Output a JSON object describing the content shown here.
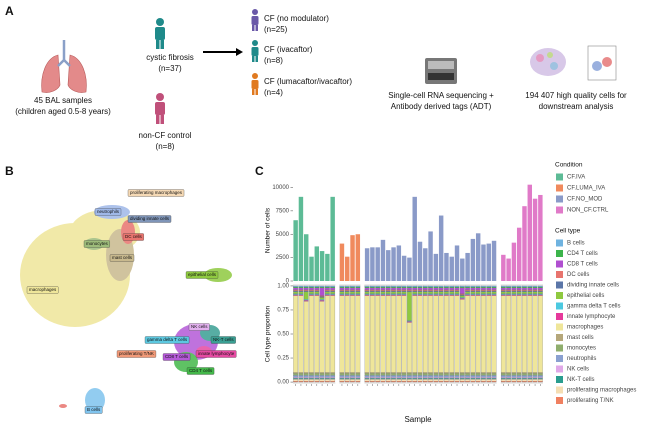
{
  "panel_a": {
    "label": "A",
    "samples": [
      "45 BAL samples",
      "(children aged 0.5-8 years)"
    ],
    "cf": [
      "cystic fibrosis",
      "(n=37)"
    ],
    "control": [
      "non-CF control",
      "(n=8)"
    ],
    "subgroups": [
      [
        "CF (no modulator)",
        "(n=25)"
      ],
      [
        "CF (ivacaftor)",
        "(n=8)"
      ],
      [
        "CF (lumacaftor/ivacaftor)",
        "(n=4)"
      ]
    ],
    "sequencing": [
      "Single-cell RNA sequencing +",
      "Antibody derived tags (ADT)"
    ],
    "cells": [
      "194 407 high quality cells for",
      "downstream analysis"
    ]
  },
  "panel_b": {
    "label": "B",
    "clusters": [
      {
        "name": "proliferating macrophages",
        "color": "#f5d9b5"
      },
      {
        "name": "neutrophils",
        "color": "#9fb8e8"
      },
      {
        "name": "dividing innate cells",
        "color": "#7f95b8"
      },
      {
        "name": "DC cells",
        "color": "#e8746e"
      },
      {
        "name": "monocytes",
        "color": "#9dbb7a"
      },
      {
        "name": "mast cells",
        "color": "#c8b98e"
      },
      {
        "name": "macrophages",
        "color": "#efe69a"
      },
      {
        "name": "epithelial cells",
        "color": "#8fc940"
      },
      {
        "name": "NK cells",
        "color": "#e2b0ee"
      },
      {
        "name": "NK-T cells",
        "color": "#3a9f93"
      },
      {
        "name": "gamma delta T cells",
        "color": "#5cc8e0"
      },
      {
        "name": "innate lymphocyte",
        "color": "#e64aa2"
      },
      {
        "name": "proliferating T/NK",
        "color": "#f29a78"
      },
      {
        "name": "CD8 T cells",
        "color": "#b55ad8"
      },
      {
        "name": "CD4 T cells",
        "color": "#44b84a"
      },
      {
        "name": "B cells",
        "color": "#80c4ee"
      }
    ]
  },
  "panel_c": {
    "label": "C"
  },
  "chart_data": [
    {
      "type": "bar",
      "ylabel": "Number of cells",
      "legend_title": "Condition",
      "ylim": [
        0,
        10800
      ],
      "yticks": [
        0,
        2500,
        5000,
        7500,
        10000
      ],
      "series": [
        {
          "name": "CF.IVA",
          "color": "#5dbb96",
          "values": [
            6500,
            9000,
            5000,
            2600,
            3700,
            3200,
            2900,
            9000
          ]
        },
        {
          "name": "CF.LUMA_IVA",
          "color": "#f08a5d",
          "values": [
            4000,
            2600,
            4900,
            5000
          ]
        },
        {
          "name": "CF.NO_MOD",
          "color": "#8a9ac8",
          "values": [
            3500,
            3600,
            3600,
            4400,
            3300,
            3600,
            3800,
            2700,
            2500,
            9000,
            4200,
            3500,
            5300,
            2900,
            7000,
            3000,
            2600,
            3800,
            2400,
            3000,
            4500,
            5100,
            3900,
            4000,
            4300
          ]
        },
        {
          "name": "NON_CF.CTRL",
          "color": "#e07ac8",
          "values": [
            2800,
            2400,
            4100,
            5700,
            8000,
            10300,
            8800,
            9200
          ]
        }
      ]
    },
    {
      "type": "stacked_bar",
      "ylabel": "Cell type proportion",
      "xlabel": "Sample",
      "legend_title": "Cell type",
      "ylim": [
        -0.02,
        1.02
      ],
      "yticks": [
        {
          "value": 0,
          "label": "0.00"
        },
        {
          "value": 0.25,
          "label": "0.25"
        },
        {
          "value": 0.5,
          "label": "0.50"
        },
        {
          "value": 0.75,
          "label": "0.75"
        },
        {
          "value": 1,
          "label": "1.00"
        }
      ],
      "series": [
        {
          "name": "B cells",
          "color": "#6fb3e0",
          "values": [
            0.01,
            0.01,
            0.01,
            0.01,
            0.01,
            0.01,
            0.01,
            0.01,
            0.01,
            0.01,
            0.01,
            0.01,
            0.01,
            0.01,
            0.01,
            0.01,
            0.01,
            0.01,
            0.01,
            0.01,
            0.01,
            0.01,
            0.01,
            0.01,
            0.01,
            0.01,
            0.01,
            0.01,
            0.01,
            0.01,
            0.01,
            0.01,
            0.01,
            0.01,
            0.01,
            0.01,
            0.01,
            0.01,
            0.01,
            0.01,
            0.01,
            0.01,
            0.01,
            0.01,
            0.01
          ]
        },
        {
          "name": "CD4 T cells",
          "color": "#3cb44b",
          "values": [
            0.01,
            0.01,
            0.01,
            0.01,
            0.01,
            0.01,
            0.01,
            0.01,
            0.01,
            0.01,
            0.01,
            0.01,
            0.01,
            0.01,
            0.01,
            0.01,
            0.01,
            0.01,
            0.01,
            0.01,
            0.01,
            0.01,
            0.01,
            0.01,
            0.01,
            0.01,
            0.01,
            0.01,
            0.01,
            0.01,
            0.01,
            0.01,
            0.01,
            0.01,
            0.01,
            0.01,
            0.01,
            0.01,
            0.01,
            0.01,
            0.01,
            0.01,
            0.01,
            0.01,
            0.01
          ]
        },
        {
          "name": "CD8 T cells",
          "color": "#b04fd0",
          "values": [
            0.02,
            0.02,
            0.02,
            0.02,
            0.02,
            0.08,
            0.02,
            0.02,
            0.02,
            0.02,
            0.02,
            0.02,
            0.02,
            0.02,
            0.02,
            0.02,
            0.02,
            0.02,
            0.02,
            0.02,
            0.02,
            0.02,
            0.02,
            0.02,
            0.02,
            0.02,
            0.02,
            0.02,
            0.02,
            0.02,
            0.06,
            0.02,
            0.02,
            0.02,
            0.02,
            0.02,
            0.02,
            0.02,
            0.02,
            0.02,
            0.02,
            0.02,
            0.02,
            0.02,
            0.02
          ]
        },
        {
          "name": "DC cells",
          "color": "#e8746e",
          "values": [
            0.01,
            0.01,
            0.01,
            0.01,
            0.01,
            0.01,
            0.01,
            0.01,
            0.01,
            0.01,
            0.01,
            0.01,
            0.01,
            0.01,
            0.01,
            0.01,
            0.01,
            0.01,
            0.01,
            0.01,
            0.01,
            0.01,
            0.01,
            0.01,
            0.01,
            0.01,
            0.01,
            0.01,
            0.01,
            0.01,
            0.01,
            0.01,
            0.01,
            0.01,
            0.01,
            0.01,
            0.01,
            0.01,
            0.01,
            0.01,
            0.01,
            0.01,
            0.01,
            0.01,
            0.01
          ]
        },
        {
          "name": "dividing innate cells",
          "color": "#5b76a8",
          "values": [
            0.01,
            0.01,
            0.01,
            0.01,
            0.01,
            0.01,
            0.01,
            0.01,
            0.01,
            0.01,
            0.01,
            0.01,
            0.01,
            0.01,
            0.01,
            0.01,
            0.01,
            0.01,
            0.01,
            0.01,
            0.01,
            0.01,
            0.01,
            0.01,
            0.01,
            0.01,
            0.01,
            0.01,
            0.01,
            0.01,
            0.01,
            0.01,
            0.01,
            0.01,
            0.01,
            0.01,
            0.01,
            0.01,
            0.01,
            0.01,
            0.01,
            0.01,
            0.01,
            0.01,
            0.01
          ]
        },
        {
          "name": "epithelial cells",
          "color": "#8fc940",
          "values": [
            0.02,
            0.02,
            0.08,
            0.02,
            0.02,
            0.02,
            0.02,
            0.02,
            0.02,
            0.02,
            0.02,
            0.02,
            0.02,
            0.02,
            0.02,
            0.02,
            0.02,
            0.02,
            0.02,
            0.02,
            0.3,
            0.02,
            0.02,
            0.02,
            0.02,
            0.02,
            0.02,
            0.02,
            0.02,
            0.02,
            0.02,
            0.02,
            0.02,
            0.02,
            0.02,
            0.02,
            0.02,
            0.02,
            0.02,
            0.02,
            0.02,
            0.02,
            0.02,
            0.02,
            0.02
          ]
        },
        {
          "name": "gamma delta T cells",
          "color": "#4cc9e0",
          "values": [
            0.01,
            0.01,
            0.01,
            0.01,
            0.01,
            0.01,
            0.01,
            0.01,
            0.01,
            0.01,
            0.01,
            0.01,
            0.01,
            0.01,
            0.01,
            0.01,
            0.01,
            0.01,
            0.01,
            0.01,
            0.01,
            0.01,
            0.01,
            0.01,
            0.01,
            0.01,
            0.01,
            0.01,
            0.01,
            0.01,
            0.01,
            0.01,
            0.01,
            0.01,
            0.01,
            0.01,
            0.01,
            0.01,
            0.01,
            0.01,
            0.01,
            0.01,
            0.01,
            0.01,
            0.01
          ]
        },
        {
          "name": "innate lymphocyte",
          "color": "#e6399b",
          "values": [
            0.01,
            0.01,
            0.01,
            0.01,
            0.01,
            0.01,
            0.01,
            0.01,
            0.01,
            0.01,
            0.01,
            0.01,
            0.01,
            0.01,
            0.01,
            0.01,
            0.01,
            0.01,
            0.01,
            0.01,
            0.01,
            0.01,
            0.01,
            0.01,
            0.01,
            0.01,
            0.01,
            0.01,
            0.01,
            0.01,
            0.01,
            0.01,
            0.01,
            0.01,
            0.01,
            0.01,
            0.01,
            0.01,
            0.01,
            0.01,
            0.01,
            0.01,
            0.01,
            0.01,
            0.01
          ]
        },
        {
          "name": "macrophages",
          "color": "#efe69a",
          "values": [
            0.8,
            0.8,
            0.74,
            0.8,
            0.8,
            0.74,
            0.8,
            0.8,
            0.8,
            0.8,
            0.8,
            0.8,
            0.8,
            0.8,
            0.8,
            0.8,
            0.8,
            0.8,
            0.8,
            0.8,
            0.52,
            0.8,
            0.8,
            0.8,
            0.8,
            0.8,
            0.8,
            0.8,
            0.8,
            0.8,
            0.76,
            0.8,
            0.8,
            0.8,
            0.8,
            0.8,
            0.8,
            0.8,
            0.8,
            0.8,
            0.8,
            0.8,
            0.8,
            0.8,
            0.8
          ]
        },
        {
          "name": "mast cells",
          "color": "#b5a77a",
          "values": [
            0.01,
            0.01,
            0.01,
            0.01,
            0.01,
            0.01,
            0.01,
            0.01,
            0.01,
            0.01,
            0.01,
            0.01,
            0.01,
            0.01,
            0.01,
            0.01,
            0.01,
            0.01,
            0.01,
            0.01,
            0.01,
            0.01,
            0.01,
            0.01,
            0.01,
            0.01,
            0.01,
            0.01,
            0.01,
            0.01,
            0.01,
            0.01,
            0.01,
            0.01,
            0.01,
            0.01,
            0.01,
            0.01,
            0.01,
            0.01,
            0.01,
            0.01,
            0.01,
            0.01,
            0.01
          ]
        },
        {
          "name": "monocytes",
          "color": "#8fae6d",
          "values": [
            0.02,
            0.02,
            0.02,
            0.02,
            0.02,
            0.02,
            0.02,
            0.02,
            0.02,
            0.02,
            0.02,
            0.02,
            0.02,
            0.02,
            0.02,
            0.02,
            0.02,
            0.02,
            0.02,
            0.02,
            0.02,
            0.02,
            0.02,
            0.02,
            0.02,
            0.02,
            0.02,
            0.02,
            0.02,
            0.02,
            0.02,
            0.02,
            0.02,
            0.02,
            0.02,
            0.02,
            0.02,
            0.02,
            0.02,
            0.02,
            0.02,
            0.02,
            0.02,
            0.02,
            0.02
          ]
        },
        {
          "name": "neutrophils",
          "color": "#8aa0d0",
          "values": [
            0.02,
            0.02,
            0.02,
            0.02,
            0.02,
            0.02,
            0.02,
            0.02,
            0.02,
            0.02,
            0.02,
            0.02,
            0.02,
            0.02,
            0.02,
            0.02,
            0.02,
            0.02,
            0.02,
            0.02,
            0.02,
            0.02,
            0.02,
            0.02,
            0.02,
            0.02,
            0.02,
            0.02,
            0.02,
            0.02,
            0.02,
            0.02,
            0.02,
            0.02,
            0.02,
            0.02,
            0.02,
            0.02,
            0.02,
            0.02,
            0.02,
            0.02,
            0.02,
            0.02,
            0.02
          ]
        },
        {
          "name": "NK cells",
          "color": "#e0a8e8",
          "values": [
            0.01,
            0.01,
            0.01,
            0.01,
            0.01,
            0.01,
            0.01,
            0.01,
            0.01,
            0.01,
            0.01,
            0.01,
            0.01,
            0.01,
            0.01,
            0.01,
            0.01,
            0.01,
            0.01,
            0.01,
            0.01,
            0.01,
            0.01,
            0.01,
            0.01,
            0.01,
            0.01,
            0.01,
            0.01,
            0.01,
            0.01,
            0.01,
            0.01,
            0.01,
            0.01,
            0.01,
            0.01,
            0.01,
            0.01,
            0.01,
            0.01,
            0.01,
            0.01,
            0.01,
            0.01
          ]
        },
        {
          "name": "NK-T cells",
          "color": "#2a9d8f",
          "values": [
            0.01,
            0.01,
            0.01,
            0.01,
            0.01,
            0.01,
            0.01,
            0.01,
            0.01,
            0.01,
            0.01,
            0.01,
            0.01,
            0.01,
            0.01,
            0.01,
            0.01,
            0.01,
            0.01,
            0.01,
            0.01,
            0.01,
            0.01,
            0.01,
            0.01,
            0.01,
            0.01,
            0.01,
            0.01,
            0.01,
            0.01,
            0.01,
            0.01,
            0.01,
            0.01,
            0.01,
            0.01,
            0.01,
            0.01,
            0.01,
            0.01,
            0.01,
            0.01,
            0.01,
            0.01
          ]
        },
        {
          "name": "proliferating macrophages",
          "color": "#f5deb3",
          "values": [
            0.02,
            0.02,
            0.02,
            0.02,
            0.02,
            0.02,
            0.02,
            0.02,
            0.02,
            0.02,
            0.02,
            0.02,
            0.02,
            0.02,
            0.02,
            0.02,
            0.02,
            0.02,
            0.02,
            0.02,
            0.02,
            0.02,
            0.02,
            0.02,
            0.02,
            0.02,
            0.02,
            0.02,
            0.02,
            0.02,
            0.02,
            0.02,
            0.02,
            0.02,
            0.02,
            0.02,
            0.02,
            0.02,
            0.02,
            0.02,
            0.02,
            0.02,
            0.02,
            0.02,
            0.02
          ]
        },
        {
          "name": "proliferating T/NK",
          "color": "#f08060",
          "values": [
            0.01,
            0.01,
            0.01,
            0.01,
            0.01,
            0.01,
            0.01,
            0.01,
            0.01,
            0.01,
            0.01,
            0.01,
            0.01,
            0.01,
            0.01,
            0.01,
            0.01,
            0.01,
            0.01,
            0.01,
            0.01,
            0.01,
            0.01,
            0.01,
            0.01,
            0.01,
            0.01,
            0.01,
            0.01,
            0.01,
            0.01,
            0.01,
            0.01,
            0.01,
            0.01,
            0.01,
            0.01,
            0.01,
            0.01,
            0.01,
            0.01,
            0.01,
            0.01,
            0.01,
            0.01
          ]
        }
      ]
    }
  ]
}
